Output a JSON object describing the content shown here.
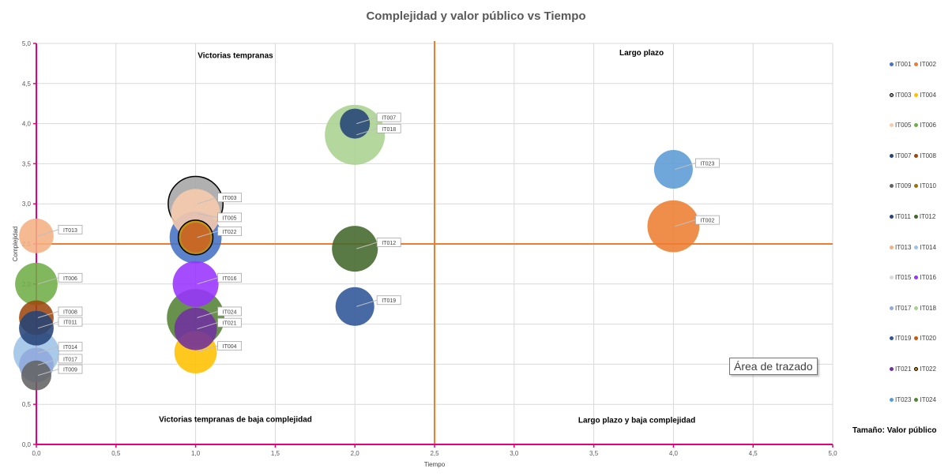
{
  "title": "Complejidad y valor público vs Tiempo",
  "size_note": "Tamaño: Valor público",
  "tooltip": "Área de trazado",
  "chart_data": {
    "type": "scatter",
    "subtype": "bubble",
    "title": "Complejidad y valor público vs Tiempo",
    "xlabel": "Tiempo",
    "ylabel": "Complejidad",
    "xlim": [
      0,
      5
    ],
    "ylim": [
      0,
      5
    ],
    "x_ticks": [
      "0,0",
      "0,5",
      "1,0",
      "1,5",
      "2,0",
      "2,5",
      "3,0",
      "3,5",
      "4,0",
      "4,5",
      "5,0"
    ],
    "y_ticks": [
      "0,0",
      "0,5",
      "1,0",
      "1,5",
      "2,0",
      "2,5",
      "3,0",
      "3,5",
      "4,0",
      "4,5",
      "5,0"
    ],
    "grid": true,
    "quadrant_lines": {
      "x": 2.5,
      "y": 2.5,
      "color": "#ED7D31"
    },
    "quadrant_labels": [
      {
        "text": "Victorias tempranas",
        "x": 1.25,
        "y": 4.82
      },
      {
        "text": "Largo plazo",
        "x": 3.8,
        "y": 4.85
      },
      {
        "text": "Victorias tempranas de baja complejidad",
        "x": 1.25,
        "y": 0.28
      },
      {
        "text": "Largo plazo y baja complejidad",
        "x": 3.77,
        "y": 0.27
      }
    ],
    "legend_position": "right",
    "series": [
      {
        "name": "IT001",
        "x": 1.0,
        "y": 2.58,
        "size": 9,
        "color": "#4472C4",
        "label_visible": false
      },
      {
        "name": "IT002",
        "x": 4.0,
        "y": 2.72,
        "size": 9,
        "color": "#ED7D31",
        "label_visible": true
      },
      {
        "name": "IT003",
        "x": 1.0,
        "y": 3.0,
        "size": 10,
        "color": "#A5A5A5",
        "outline": "#000000",
        "label_visible": true
      },
      {
        "name": "IT004",
        "x": 1.0,
        "y": 1.15,
        "size": 6,
        "color": "#FFC000",
        "label_visible": true
      },
      {
        "name": "IT005",
        "x": 1.0,
        "y": 2.88,
        "size": 8,
        "color": "#F8CBAD",
        "label_visible": true
      },
      {
        "name": "IT006",
        "x": 0.0,
        "y": 2.0,
        "size": 6,
        "color": "#70AD47",
        "label_visible": true
      },
      {
        "name": "IT007",
        "x": 2.0,
        "y": 4.0,
        "size": 3,
        "color": "#264478",
        "label_visible": true
      },
      {
        "name": "IT008",
        "x": 0.0,
        "y": 1.58,
        "size": 4,
        "color": "#9E480E",
        "label_visible": true
      },
      {
        "name": "IT009",
        "x": 0.0,
        "y": 0.86,
        "size": 3,
        "color": "#636363",
        "label_visible": true
      },
      {
        "name": "IT010",
        "x": 1.0,
        "y": 2.58,
        "size": 3,
        "color": "#997300",
        "label_visible": false
      },
      {
        "name": "IT011",
        "x": 0.0,
        "y": 1.45,
        "size": 4,
        "color": "#264478",
        "label_visible": true
      },
      {
        "name": "IT012",
        "x": 2.0,
        "y": 2.44,
        "size": 7,
        "color": "#43682B",
        "label_visible": true
      },
      {
        "name": "IT013",
        "x": 0.0,
        "y": 2.6,
        "size": 4,
        "color": "#F4B183",
        "label_visible": true
      },
      {
        "name": "IT014",
        "x": 0.0,
        "y": 1.14,
        "size": 7,
        "color": "#9DC3E6",
        "label_visible": true
      },
      {
        "name": "IT015",
        "x": 1.0,
        "y": 2.58,
        "size": 3,
        "color": "#D9D9D9",
        "label_visible": false
      },
      {
        "name": "IT016",
        "x": 1.0,
        "y": 2.0,
        "size": 7,
        "color": "#9933FF",
        "label_visible": true
      },
      {
        "name": "IT017",
        "x": 0.0,
        "y": 0.99,
        "size": 4,
        "color": "#8FAADC",
        "label_visible": true
      },
      {
        "name": "IT018",
        "x": 2.0,
        "y": 3.86,
        "size": 12,
        "color": "#A9D18E",
        "label_visible": true
      },
      {
        "name": "IT019",
        "x": 2.0,
        "y": 1.72,
        "size": 5,
        "color": "#2F5597",
        "label_visible": true
      },
      {
        "name": "IT020",
        "x": 1.0,
        "y": 2.58,
        "size": 3,
        "color": "#C55A11",
        "label_visible": false
      },
      {
        "name": "IT021",
        "x": 1.0,
        "y": 1.44,
        "size": 6,
        "color": "#7030A0",
        "label_visible": true
      },
      {
        "name": "IT022",
        "x": 1.0,
        "y": 2.58,
        "size": 4,
        "color": "#BF9000",
        "outline": "#000000",
        "label_visible": true
      },
      {
        "name": "IT023",
        "x": 4.0,
        "y": 3.43,
        "size": 5,
        "color": "#5B9BD5",
        "label_visible": true
      },
      {
        "name": "IT024",
        "x": 1.0,
        "y": 1.58,
        "size": 11,
        "color": "#548235",
        "label_visible": true
      }
    ]
  }
}
